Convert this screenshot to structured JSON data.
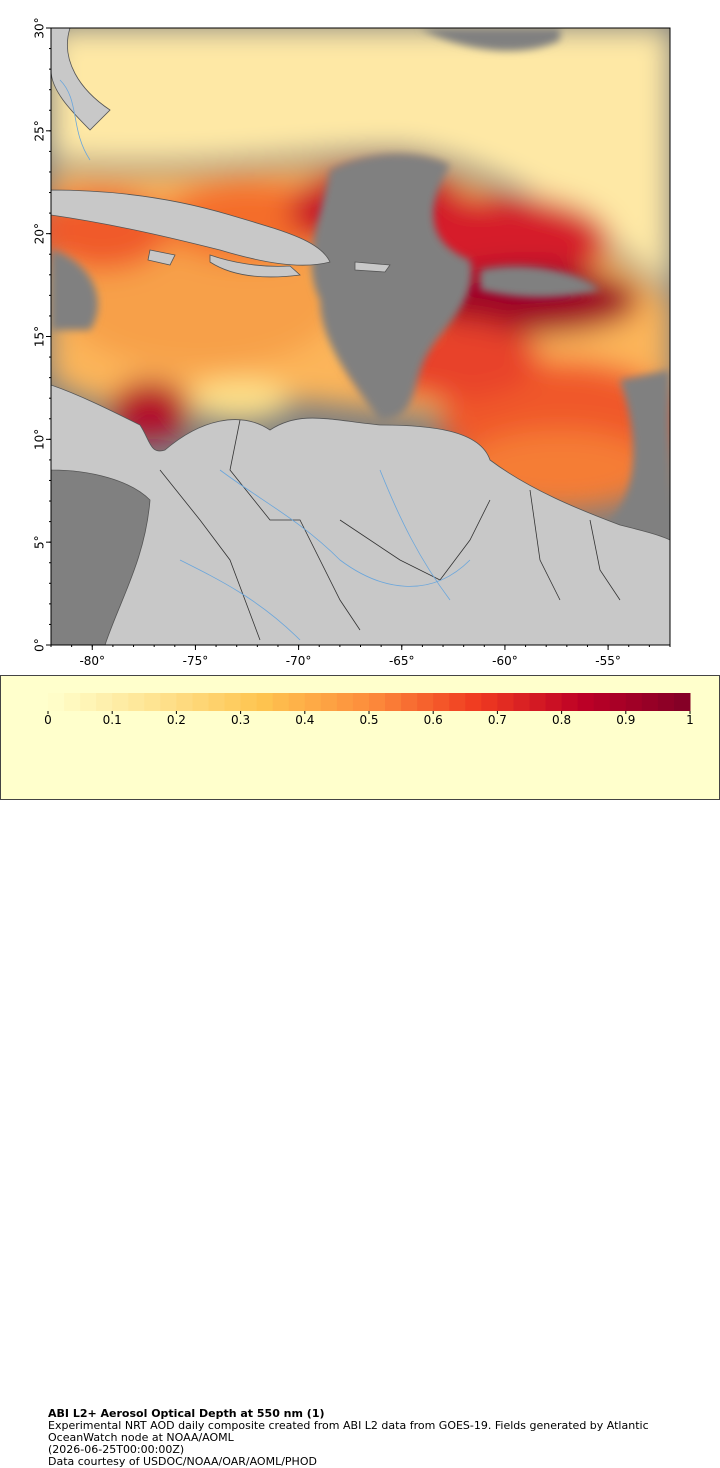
{
  "map": {
    "xlim": [
      -82,
      -52
    ],
    "ylim": [
      0,
      30
    ],
    "xticks": [
      {
        "value": -80,
        "label": "-80°"
      },
      {
        "value": -75,
        "label": "-75°"
      },
      {
        "value": -70,
        "label": "-70°"
      },
      {
        "value": -65,
        "label": "-65°"
      },
      {
        "value": -60,
        "label": "-60°"
      },
      {
        "value": -55,
        "label": "-55°"
      }
    ],
    "yticks": [
      {
        "value": 0,
        "label": "0°"
      },
      {
        "value": 5,
        "label": "5°"
      },
      {
        "value": 10,
        "label": "10°"
      },
      {
        "value": 15,
        "label": "15°"
      },
      {
        "value": 20,
        "label": "20°"
      },
      {
        "value": 25,
        "label": "25°"
      },
      {
        "value": 30,
        "label": "30°"
      }
    ]
  },
  "colorbar": {
    "lim": [
      0,
      1
    ],
    "ticks": [
      0,
      0.1,
      0.2,
      0.3,
      0.4,
      0.5,
      0.6,
      0.7,
      0.8,
      0.9,
      1
    ],
    "colors": [
      "#ffffcc",
      "#fee391",
      "#fec44f",
      "#fd8d3c",
      "#f03b20",
      "#bd0026",
      "#800026"
    ]
  },
  "caption": {
    "title": "ABI L2+ Aerosol Optical Depth at 550 nm (1)",
    "description": "Experimental NRT AOD daily composite created from ABI L2 data from GOES-19. Fields generated by Atlantic OceanWatch node at NOAA/AOML",
    "time": "(2026-06-25T00:00:00Z)",
    "credit": "Data courtesy of USDOC/NOAA/OAR/AOML/PHOD"
  }
}
